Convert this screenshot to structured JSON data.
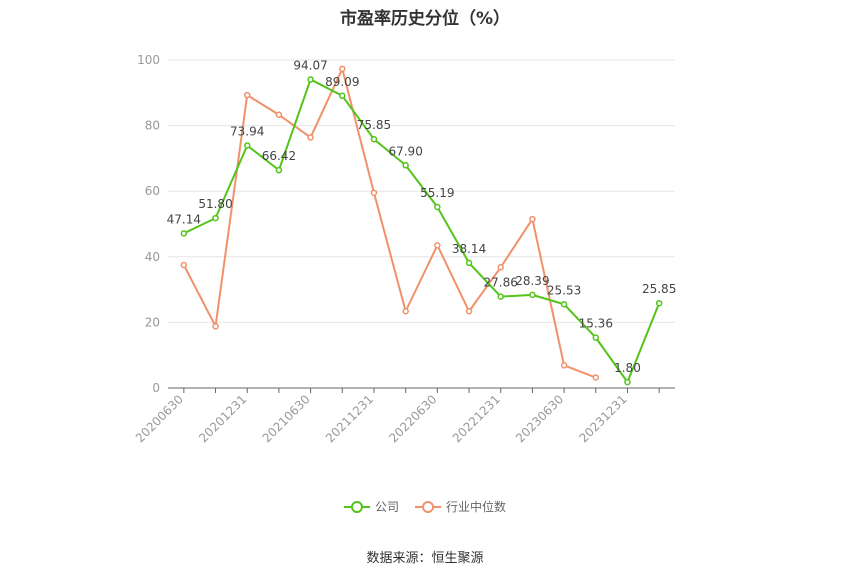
{
  "chart_data": {
    "type": "line",
    "title": "市盈率历史分位（%）",
    "categories": [
      "20200630",
      "",
      "20201231",
      "",
      "20210630",
      "",
      "20211231",
      "",
      "20220630",
      "",
      "20221231",
      "",
      "20230630",
      "",
      "20231231",
      ""
    ],
    "ylim": [
      0,
      100
    ],
    "yticks": [
      0,
      20,
      40,
      60,
      80,
      100
    ],
    "grid": true,
    "legend_position": "bottom",
    "series": [
      {
        "name": "公司",
        "color": "#52c41a",
        "values": [
          47.14,
          51.8,
          73.94,
          66.42,
          94.07,
          89.09,
          75.85,
          67.9,
          55.19,
          38.14,
          27.86,
          28.39,
          25.53,
          15.36,
          1.8,
          25.85
        ],
        "labels": [
          "47.14",
          "51.80",
          "73.94",
          "66.42",
          "94.07",
          "89.09",
          "75.85",
          "67.90",
          "55.19",
          "38.14",
          "27.86",
          "28.39",
          "25.53",
          "15.36",
          "1.80",
          "25.85"
        ]
      },
      {
        "name": "行业中位数",
        "color": "#f0916a",
        "values": [
          37.5,
          18.8,
          89.3,
          83.3,
          76.4,
          97.3,
          59.5,
          23.4,
          43.5,
          23.4,
          36.8,
          51.5,
          6.9,
          3.2,
          null,
          null
        ]
      }
    ]
  },
  "source": "数据来源：恒生聚源"
}
